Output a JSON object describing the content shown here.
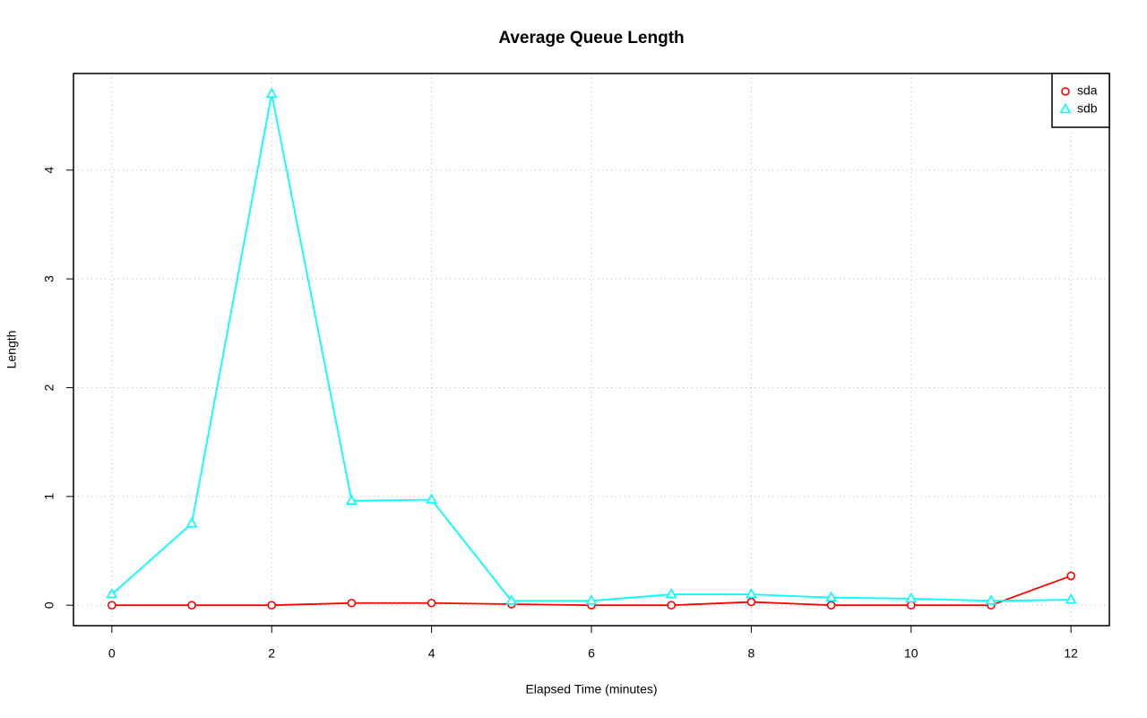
{
  "chart_data": {
    "type": "line",
    "title": "Average Queue Length",
    "x_label": "Elapsed Time (minutes)",
    "y_label": "Length",
    "x": [
      0,
      1,
      2,
      3,
      4,
      5,
      6,
      7,
      8,
      9,
      10,
      11,
      12
    ],
    "series": [
      {
        "name": "sda",
        "color": "#ff0000",
        "marker": "circle",
        "values": [
          0,
          0,
          0,
          0.02,
          0.02,
          0.01,
          0,
          0,
          0.03,
          0,
          0,
          0,
          0.27
        ]
      },
      {
        "name": "sdb",
        "color": "#00ffff",
        "marker": "triangle",
        "values": [
          0.1,
          0.75,
          4.7,
          0.96,
          0.97,
          0.04,
          0.04,
          0.1,
          0.1,
          0.07,
          0.06,
          0.04,
          0.05
        ]
      }
    ],
    "xlim": [
      -0.48,
      12.48
    ],
    "ylim": [
      -0.188,
      4.888
    ],
    "xticks": [
      0,
      2,
      4,
      6,
      8,
      10,
      12
    ],
    "yticks": [
      0,
      1,
      2,
      3,
      4
    ],
    "grid": true,
    "legend": "topright"
  }
}
